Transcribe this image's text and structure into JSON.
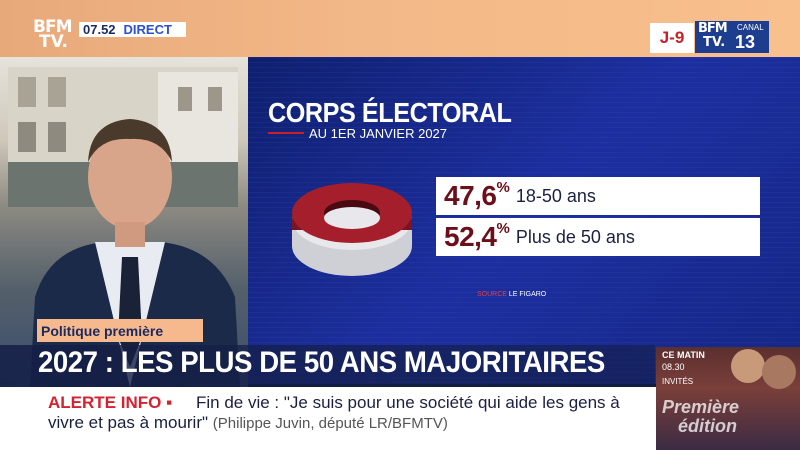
{
  "channel": {
    "logo_line1": "BFM",
    "logo_line2": "TV.",
    "time": "07.52",
    "live_label": "DIRECT",
    "countdown": "J-9",
    "partner_logo_line1": "BFM",
    "partner_logo_line2": "TV.",
    "partner_label": "CANAL",
    "partner_number": "13"
  },
  "graphic": {
    "title": "CORPS ÉLECTORAL",
    "subtitle": "AU 1ER JANVIER 2027",
    "stats": [
      {
        "percent": "47,6",
        "sign": "%",
        "label": "18-50 ans",
        "value": 47.6
      },
      {
        "percent": "52,4",
        "sign": "%",
        "label": "Plus de 50 ans",
        "value": 52.4
      }
    ],
    "source_label": "SOURCE",
    "source_name": "LE FIGARO",
    "colors": {
      "young": "#6b0f1a",
      "old": "#e8e8ec",
      "panel": "#1d2fa0"
    }
  },
  "lower_third": {
    "tag": "Politique première",
    "headline": "2027 : LES PLUS DE 50 ANS MAJORITAIRES"
  },
  "ticker": {
    "alert_label": "ALERTE INFO",
    "line1": "Fin de vie : \"Je suis pour une société qui aide les gens à",
    "line2": "vivre et pas à mourir\"",
    "attribution": "(Philippe Juvin, député LR/BFMTV)"
  },
  "promo": {
    "line1": "CE MATIN",
    "line2": "08.30",
    "line3": "INVITÉS",
    "title1": "Première",
    "title2": "édition"
  }
}
